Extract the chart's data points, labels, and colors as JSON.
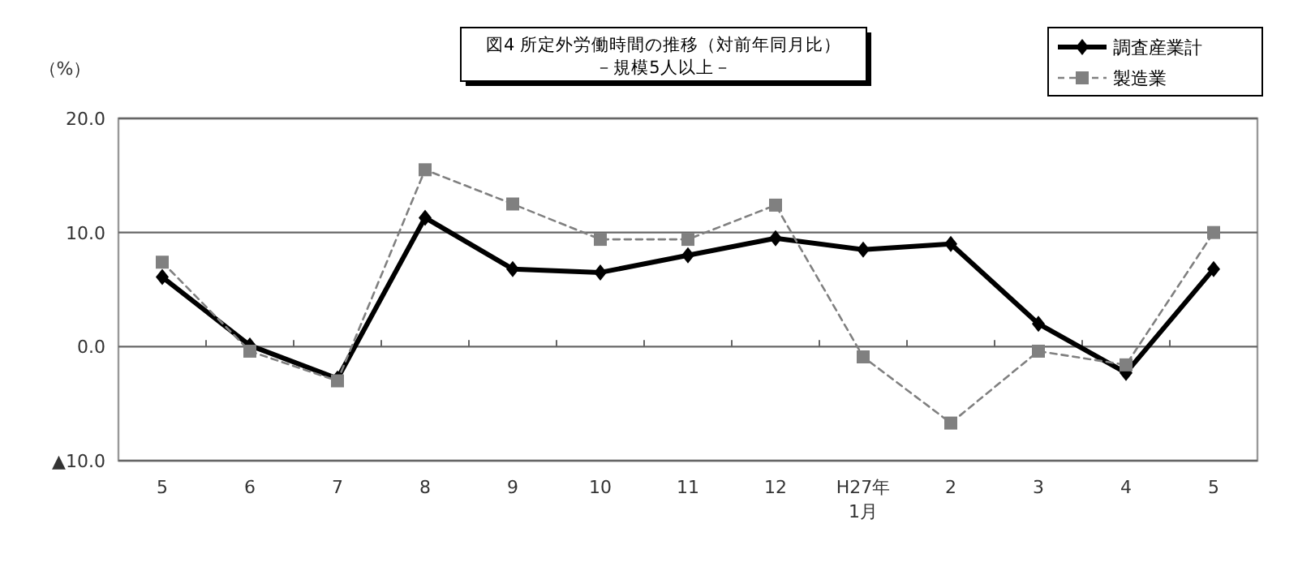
{
  "chart_data": {
    "type": "line",
    "title": "図4 所定外労働時間の推移（対前年同月比）",
    "subtitle": "－規模5人以上－",
    "ylabel": "（%）",
    "categories": [
      "5",
      "6",
      "7",
      "8",
      "9",
      "10",
      "11",
      "12",
      "H27年\n1月",
      "2",
      "3",
      "4",
      "5"
    ],
    "series": [
      {
        "name": "調査産業計",
        "color": "#000000",
        "marker": "diamond",
        "line_style": "solid",
        "values": [
          6.1,
          0.1,
          -2.8,
          11.3,
          6.8,
          6.5,
          8.0,
          9.5,
          8.5,
          9.0,
          2.0,
          -2.3,
          6.8
        ]
      },
      {
        "name": "製造業",
        "color": "#808080",
        "marker": "square",
        "line_style": "dashed",
        "values": [
          7.4,
          -0.4,
          -3.0,
          15.5,
          12.5,
          9.4,
          9.4,
          12.4,
          -0.9,
          -6.7,
          -0.4,
          -1.6,
          10.0
        ]
      }
    ],
    "ylim": [
      -10,
      20
    ],
    "yticks": [
      {
        "value": 20,
        "label": "20.0"
      },
      {
        "value": 10,
        "label": "10.0"
      },
      {
        "value": 0,
        "label": "0.0"
      },
      {
        "value": -10,
        "label": "▲10.0"
      }
    ],
    "grid": "y",
    "legend": "top right"
  }
}
